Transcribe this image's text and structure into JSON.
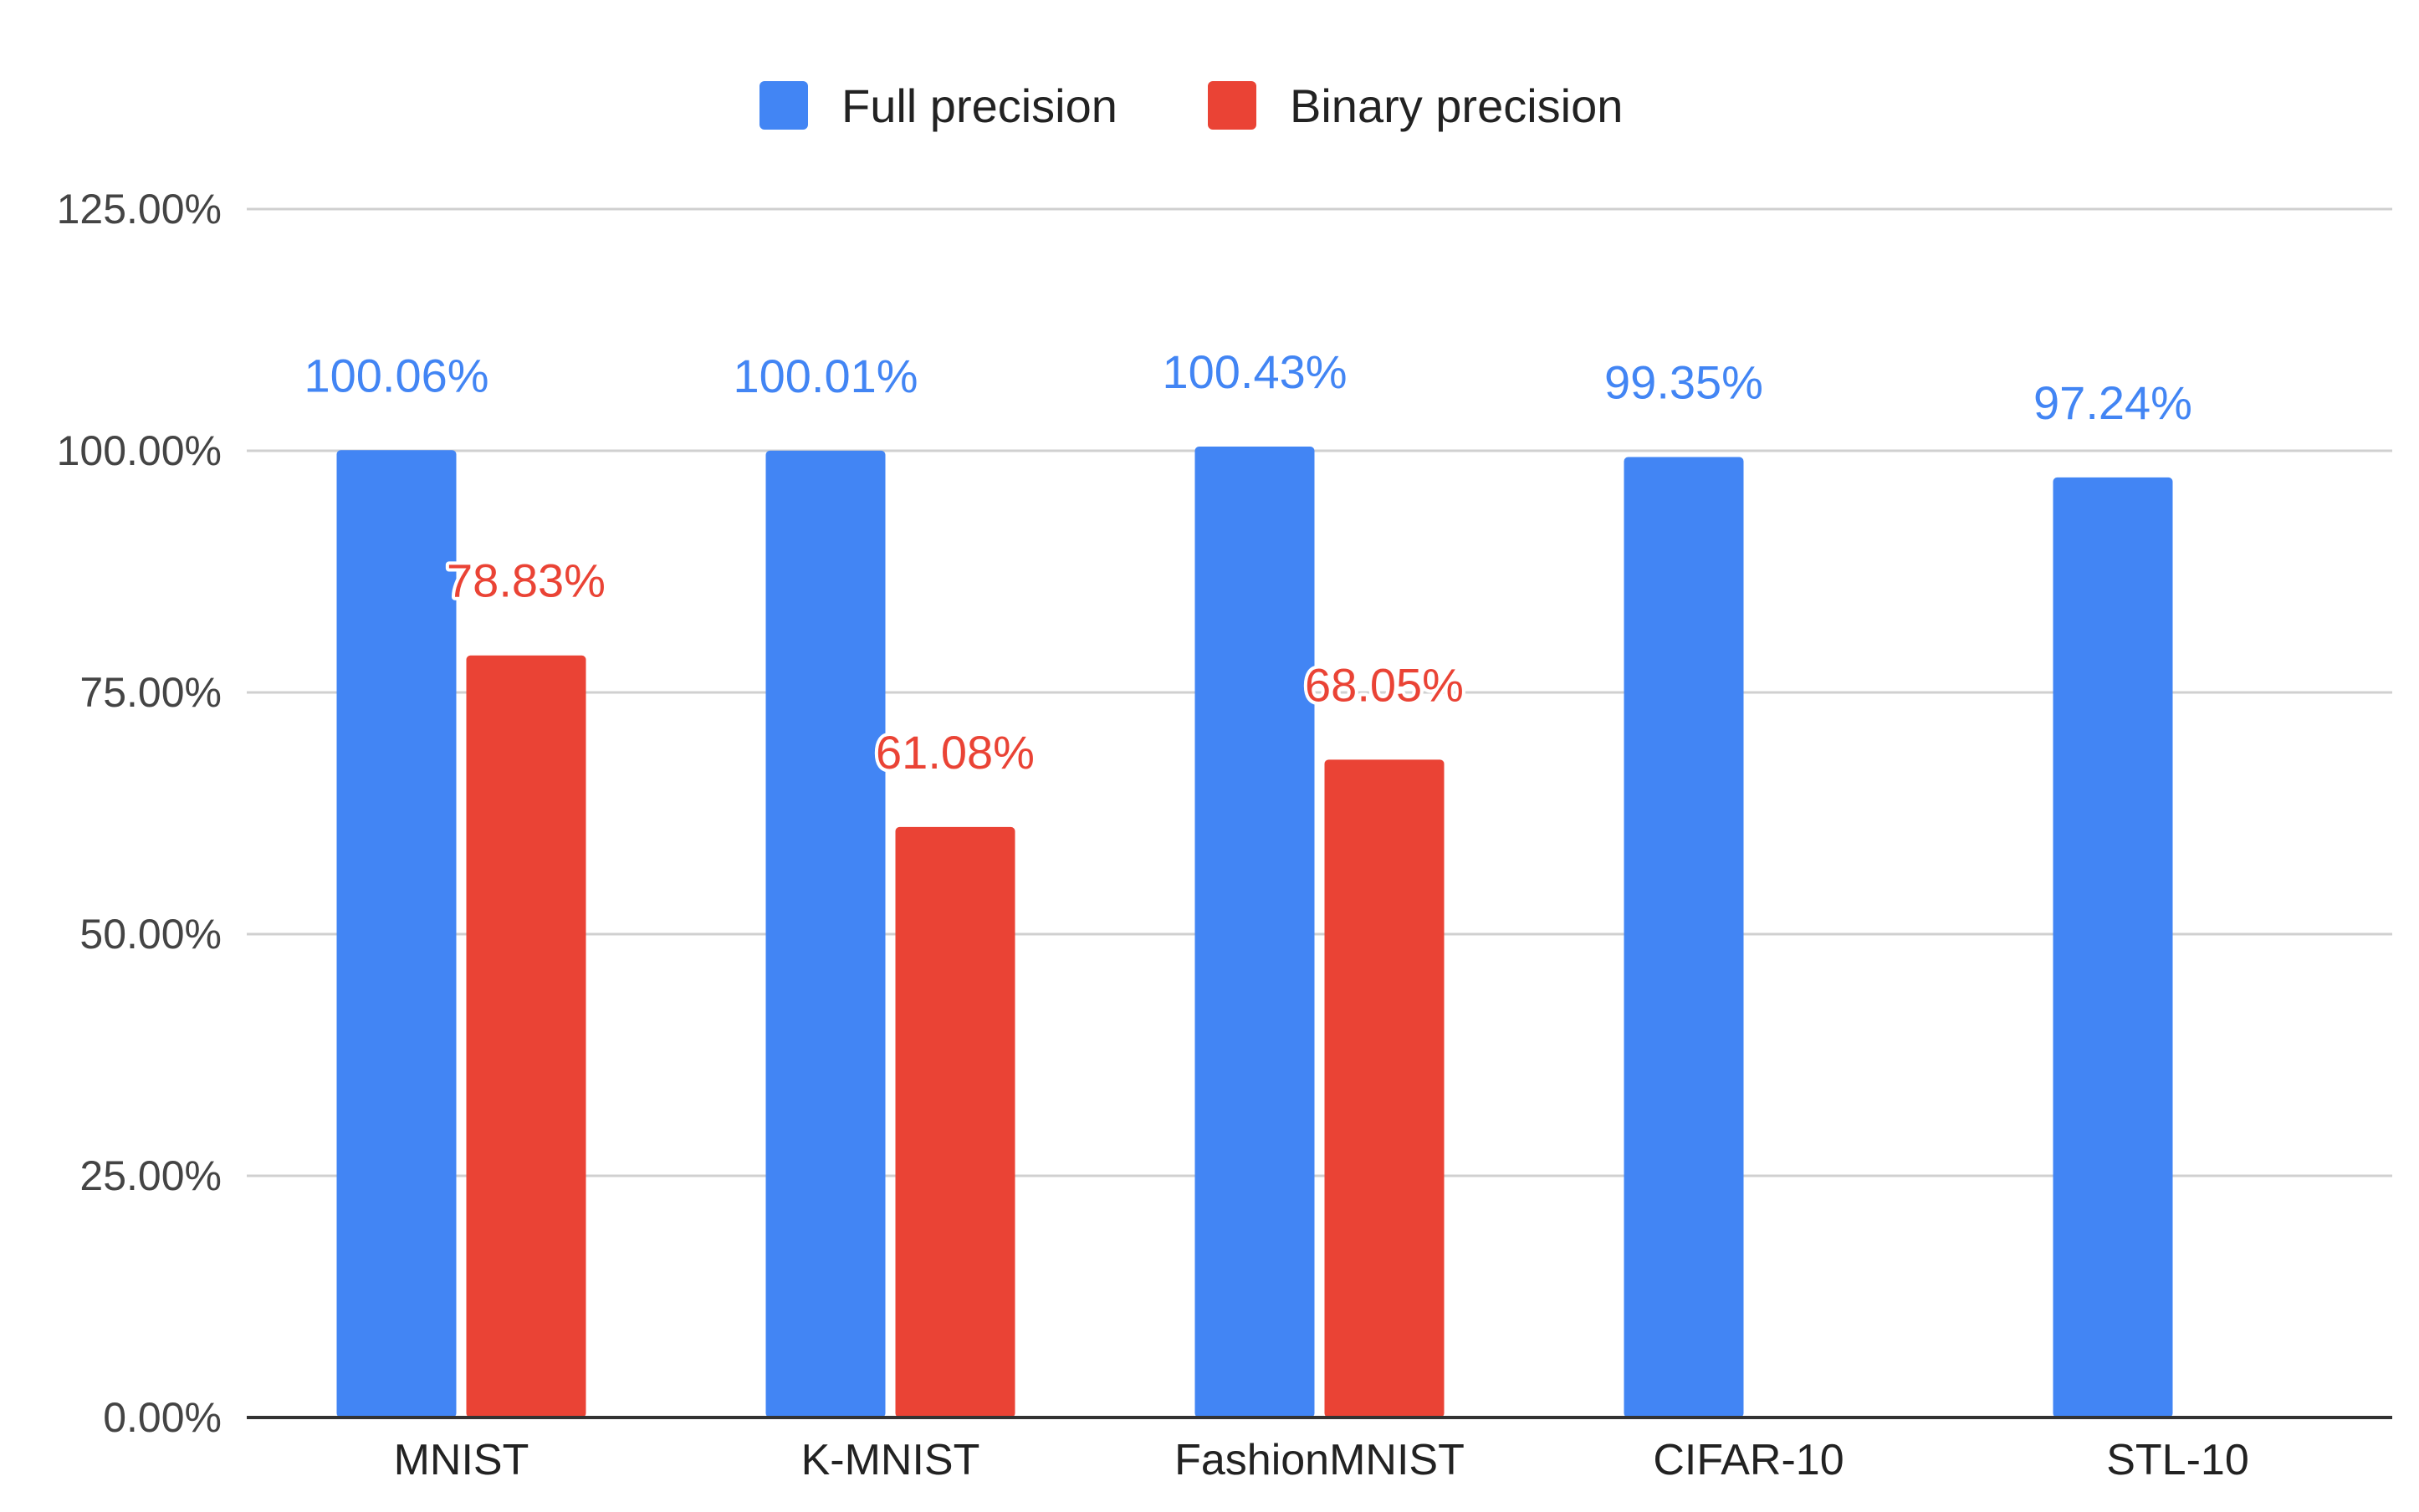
{
  "chart_data": {
    "type": "bar",
    "title": "",
    "xlabel": "",
    "ylabel": "",
    "categories": [
      "MNIST",
      "K-MNIST",
      "FashionMNIST",
      "CIFAR-10",
      "STL-10"
    ],
    "series": [
      {
        "name": "Full precision",
        "color": "#4285f4",
        "values": [
          100.06,
          100.01,
          100.43,
          99.35,
          97.24
        ],
        "labels": [
          "100.06%",
          "100.01%",
          "100.43%",
          "99.35%",
          "97.24%"
        ]
      },
      {
        "name": "Binary precision",
        "color": "#ea4335",
        "values": [
          78.83,
          61.08,
          68.05,
          null,
          null
        ],
        "labels": [
          "78.83%",
          "61.08%",
          "68.05%",
          "",
          ""
        ]
      }
    ],
    "ylim": [
      0,
      125
    ],
    "yticks": [
      0,
      25,
      50,
      75,
      100,
      125
    ],
    "ytick_labels": [
      "0.00%",
      "25.00%",
      "50.00%",
      "75.00%",
      "100.00%",
      "125.00%"
    ],
    "grid": true,
    "legend": "top-center"
  }
}
